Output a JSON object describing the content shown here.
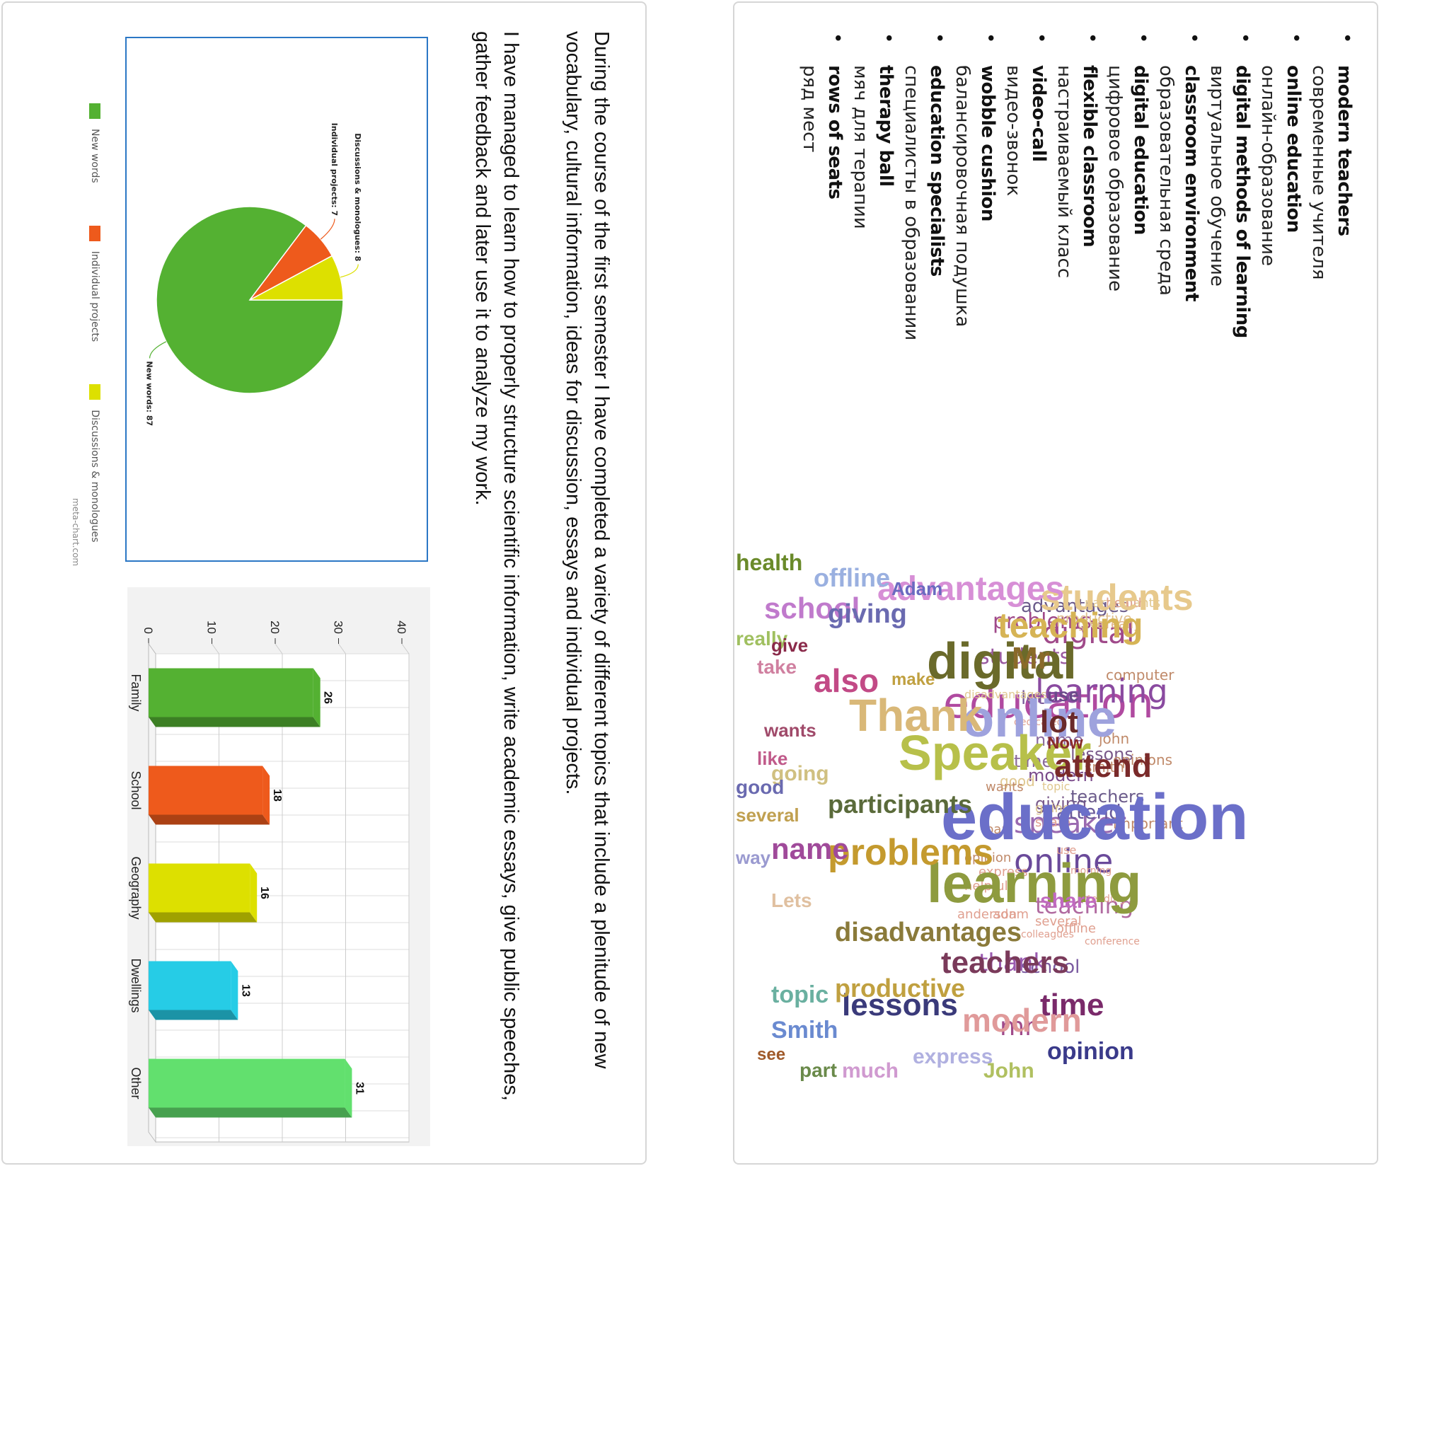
{
  "summary": {
    "paragraph1": "During the course of the first semester I have completed a variety of different topics that include a plenitude of new vocabulary, cultural information, ideas for discussion, essays and individual projects.",
    "paragraph2": "I have managed to learn how to properly structure scientific information, write academic essays, give public speeches, gather feedback and later use it to analyze my work.",
    "credit": "meta-chart.com"
  },
  "chart_data": [
    {
      "type": "pie",
      "title": "",
      "labels": [
        "New words",
        "Individual projects",
        "Discussions & monologues"
      ],
      "values": [
        87,
        7,
        8
      ],
      "slice_labels": [
        "New words: 87",
        "Individual projects: 7",
        "Discussions & monologues: 8"
      ],
      "colors": [
        "#54b132",
        "#ee5a1c",
        "#dde000"
      ],
      "legend": "bottom"
    },
    {
      "type": "bar",
      "title": "",
      "categories": [
        "Family",
        "School",
        "Geography",
        "Dwellings",
        "Other"
      ],
      "values": [
        26,
        18,
        16,
        13,
        31
      ],
      "ylim": [
        0,
        40
      ],
      "yticks": [
        "0",
        "10",
        "20",
        "30",
        "40"
      ],
      "colors": [
        "#54b132",
        "#ee5a1c",
        "#dde000",
        "#26cce6",
        "#62e06e"
      ],
      "grid": true,
      "xlabel": "",
      "ylabel": ""
    }
  ],
  "vocabulary": [
    {
      "term": "modern teachers",
      "translation": "современные учителя"
    },
    {
      "term": "online education",
      "translation": "онлайн-образование"
    },
    {
      "term": "digital methods of learning",
      "translation": "виртуальное обучение"
    },
    {
      "term": "classroom environment",
      "translation": "образовательная среда"
    },
    {
      "term": "digital education",
      "translation": "цифровое образование"
    },
    {
      "term": "flexible classroom",
      "translation": "настраиваемый класс"
    },
    {
      "term": "video-call",
      "translation": "видео-звонок"
    },
    {
      "term": "wobble cushion",
      "translation": "балансировочная подушка"
    },
    {
      "term": "education specialists",
      "translation": "специалисты в образовании"
    },
    {
      "term": "therapy ball",
      "translation": "мяч для терапии"
    },
    {
      "term": "rows of seats",
      "translation": "ряд мест"
    }
  ],
  "word_cloud_large": [
    {
      "w": "education",
      "c": "#6b6fc9"
    },
    {
      "w": "learning",
      "c": "#8e9b3f"
    },
    {
      "w": "online",
      "c": "#9ea2dd"
    },
    {
      "w": "digital",
      "c": "#6a6a2a"
    },
    {
      "w": "Speaker",
      "c": "#b7c04a"
    },
    {
      "w": "Thank",
      "c": "#d9b878"
    },
    {
      "w": "students",
      "c": "#e7c98c"
    },
    {
      "w": "teaching",
      "c": "#d6b455"
    },
    {
      "w": "advantages",
      "c": "#d78fd6"
    },
    {
      "w": "problems",
      "c": "#c49a2e"
    },
    {
      "w": "attend",
      "c": "#7a2a2a"
    },
    {
      "w": "also",
      "c": "#c24a86"
    },
    {
      "w": "Mr",
      "c": "#8a6a2a"
    },
    {
      "w": "lot",
      "c": "#6a2a2a"
    },
    {
      "w": "time",
      "c": "#7a2a6a"
    },
    {
      "w": "modern",
      "c": "#e09a9a"
    },
    {
      "w": "teachers",
      "c": "#7a3a5a"
    },
    {
      "w": "lessons",
      "c": "#3a3a7a"
    },
    {
      "w": "name",
      "c": "#a04a9a"
    },
    {
      "w": "school",
      "c": "#c07acc"
    },
    {
      "w": "giving",
      "c": "#6a6ab0"
    },
    {
      "w": "offline",
      "c": "#9ab0e0"
    },
    {
      "w": "disadvantages",
      "c": "#8a7a3a"
    },
    {
      "w": "productive",
      "c": "#c0a040"
    },
    {
      "w": "participants",
      "c": "#5a6a3a"
    },
    {
      "w": "topic",
      "c": "#6ab0a0"
    },
    {
      "w": "Smith",
      "c": "#6a8ad0"
    },
    {
      "w": "health",
      "c": "#6a8a2a"
    },
    {
      "w": "opinion",
      "c": "#3a3a8a"
    },
    {
      "w": "John",
      "c": "#b0c060"
    },
    {
      "w": "express",
      "c": "#b0b0e0"
    },
    {
      "w": "much",
      "c": "#d09ad0"
    },
    {
      "w": "part",
      "c": "#6a8a4a"
    },
    {
      "w": "share",
      "c": "#c06ac0"
    },
    {
      "w": "going",
      "c": "#d0c080"
    },
    {
      "w": "Lets",
      "c": "#e0c0a0"
    },
    {
      "w": "way",
      "c": "#9a9ad0"
    },
    {
      "w": "several",
      "c": "#c0a050"
    },
    {
      "w": "good",
      "c": "#6a6ab0"
    },
    {
      "w": "really",
      "c": "#a0c060"
    },
    {
      "w": "take",
      "c": "#d080a0"
    },
    {
      "w": "wants",
      "c": "#a04a6a"
    },
    {
      "w": "like",
      "c": "#c05a8a"
    },
    {
      "w": "give",
      "c": "#8a2a4a"
    },
    {
      "w": "use",
      "c": "#6a4a8a"
    },
    {
      "w": "make",
      "c": "#c0a040"
    },
    {
      "w": "Adam",
      "c": "#6a6ac0"
    },
    {
      "w": "Now",
      "c": "#8a2a2a"
    },
    {
      "w": "see",
      "c": "#a05a2a"
    }
  ],
  "word_cloud_small": [
    {
      "w": "education",
      "c": "#b04aa0"
    },
    {
      "w": "learning",
      "c": "#8a4aa0"
    },
    {
      "w": "online",
      "c": "#6a4a9a"
    },
    {
      "w": "digital",
      "c": "#a04a8a"
    },
    {
      "w": "speaker",
      "c": "#9a6ab0"
    },
    {
      "w": "thank",
      "c": "#9a5ab0"
    },
    {
      "w": "teaching",
      "c": "#b06aa0"
    },
    {
      "w": "students",
      "c": "#9a5aa0"
    },
    {
      "w": "problems",
      "c": "#a04a8a"
    },
    {
      "w": "advantages",
      "c": "#6a5a8a"
    },
    {
      "w": "lot",
      "c": "#7a5a9a"
    },
    {
      "w": "name",
      "c": "#8a6aa0"
    },
    {
      "w": "modern",
      "c": "#7a4a8a"
    },
    {
      "w": "lessons",
      "c": "#7a5a8a"
    },
    {
      "w": "attend",
      "c": "#6a5a9a"
    },
    {
      "w": "school",
      "c": "#7a5aa0"
    },
    {
      "w": "mr",
      "c": "#a04a8a"
    },
    {
      "w": "time",
      "c": "#8a6a9a"
    },
    {
      "w": "giving",
      "c": "#7a5a8a"
    },
    {
      "w": "teachers",
      "c": "#6a5a8a"
    },
    {
      "w": "smith",
      "c": "#c08a6a"
    },
    {
      "w": "john",
      "c": "#c08a6a"
    },
    {
      "w": "opinions",
      "c": "#c08a6a"
    },
    {
      "w": "important",
      "c": "#c08a6a"
    },
    {
      "w": "computer",
      "c": "#c08a6a"
    },
    {
      "w": "really",
      "c": "#e0b08a"
    },
    {
      "w": "give",
      "c": "#e0c090"
    },
    {
      "w": "productive",
      "c": "#e0c090"
    },
    {
      "w": "participants",
      "c": "#e0c890"
    },
    {
      "w": "health",
      "c": "#e0a090"
    },
    {
      "w": "disadvantages",
      "c": "#e0c890"
    },
    {
      "w": "dedicated",
      "c": "#e0a090"
    },
    {
      "w": "good",
      "c": "#e0c890"
    },
    {
      "w": "topic",
      "c": "#e0c890"
    },
    {
      "w": "going",
      "c": "#e0c890"
    },
    {
      "w": "share",
      "c": "#e0a090"
    },
    {
      "w": "use",
      "c": "#e0a090"
    },
    {
      "w": "morning",
      "c": "#e0a090"
    },
    {
      "w": "attending",
      "c": "#e0a090"
    },
    {
      "w": "conference",
      "c": "#e0a090"
    },
    {
      "w": "offline",
      "c": "#e0a090"
    },
    {
      "w": "several",
      "c": "#e0a090"
    },
    {
      "w": "colleagues",
      "c": "#e0a090"
    },
    {
      "w": "wants",
      "c": "#c08a6a"
    },
    {
      "w": "part",
      "c": "#c08a6a"
    },
    {
      "w": "opinion",
      "c": "#c08a6a"
    },
    {
      "w": "helpful",
      "c": "#e0a090"
    },
    {
      "w": "express",
      "c": "#e0a090"
    },
    {
      "w": "adam",
      "c": "#e0a090"
    },
    {
      "w": "anderson",
      "c": "#e0a090"
    }
  ]
}
